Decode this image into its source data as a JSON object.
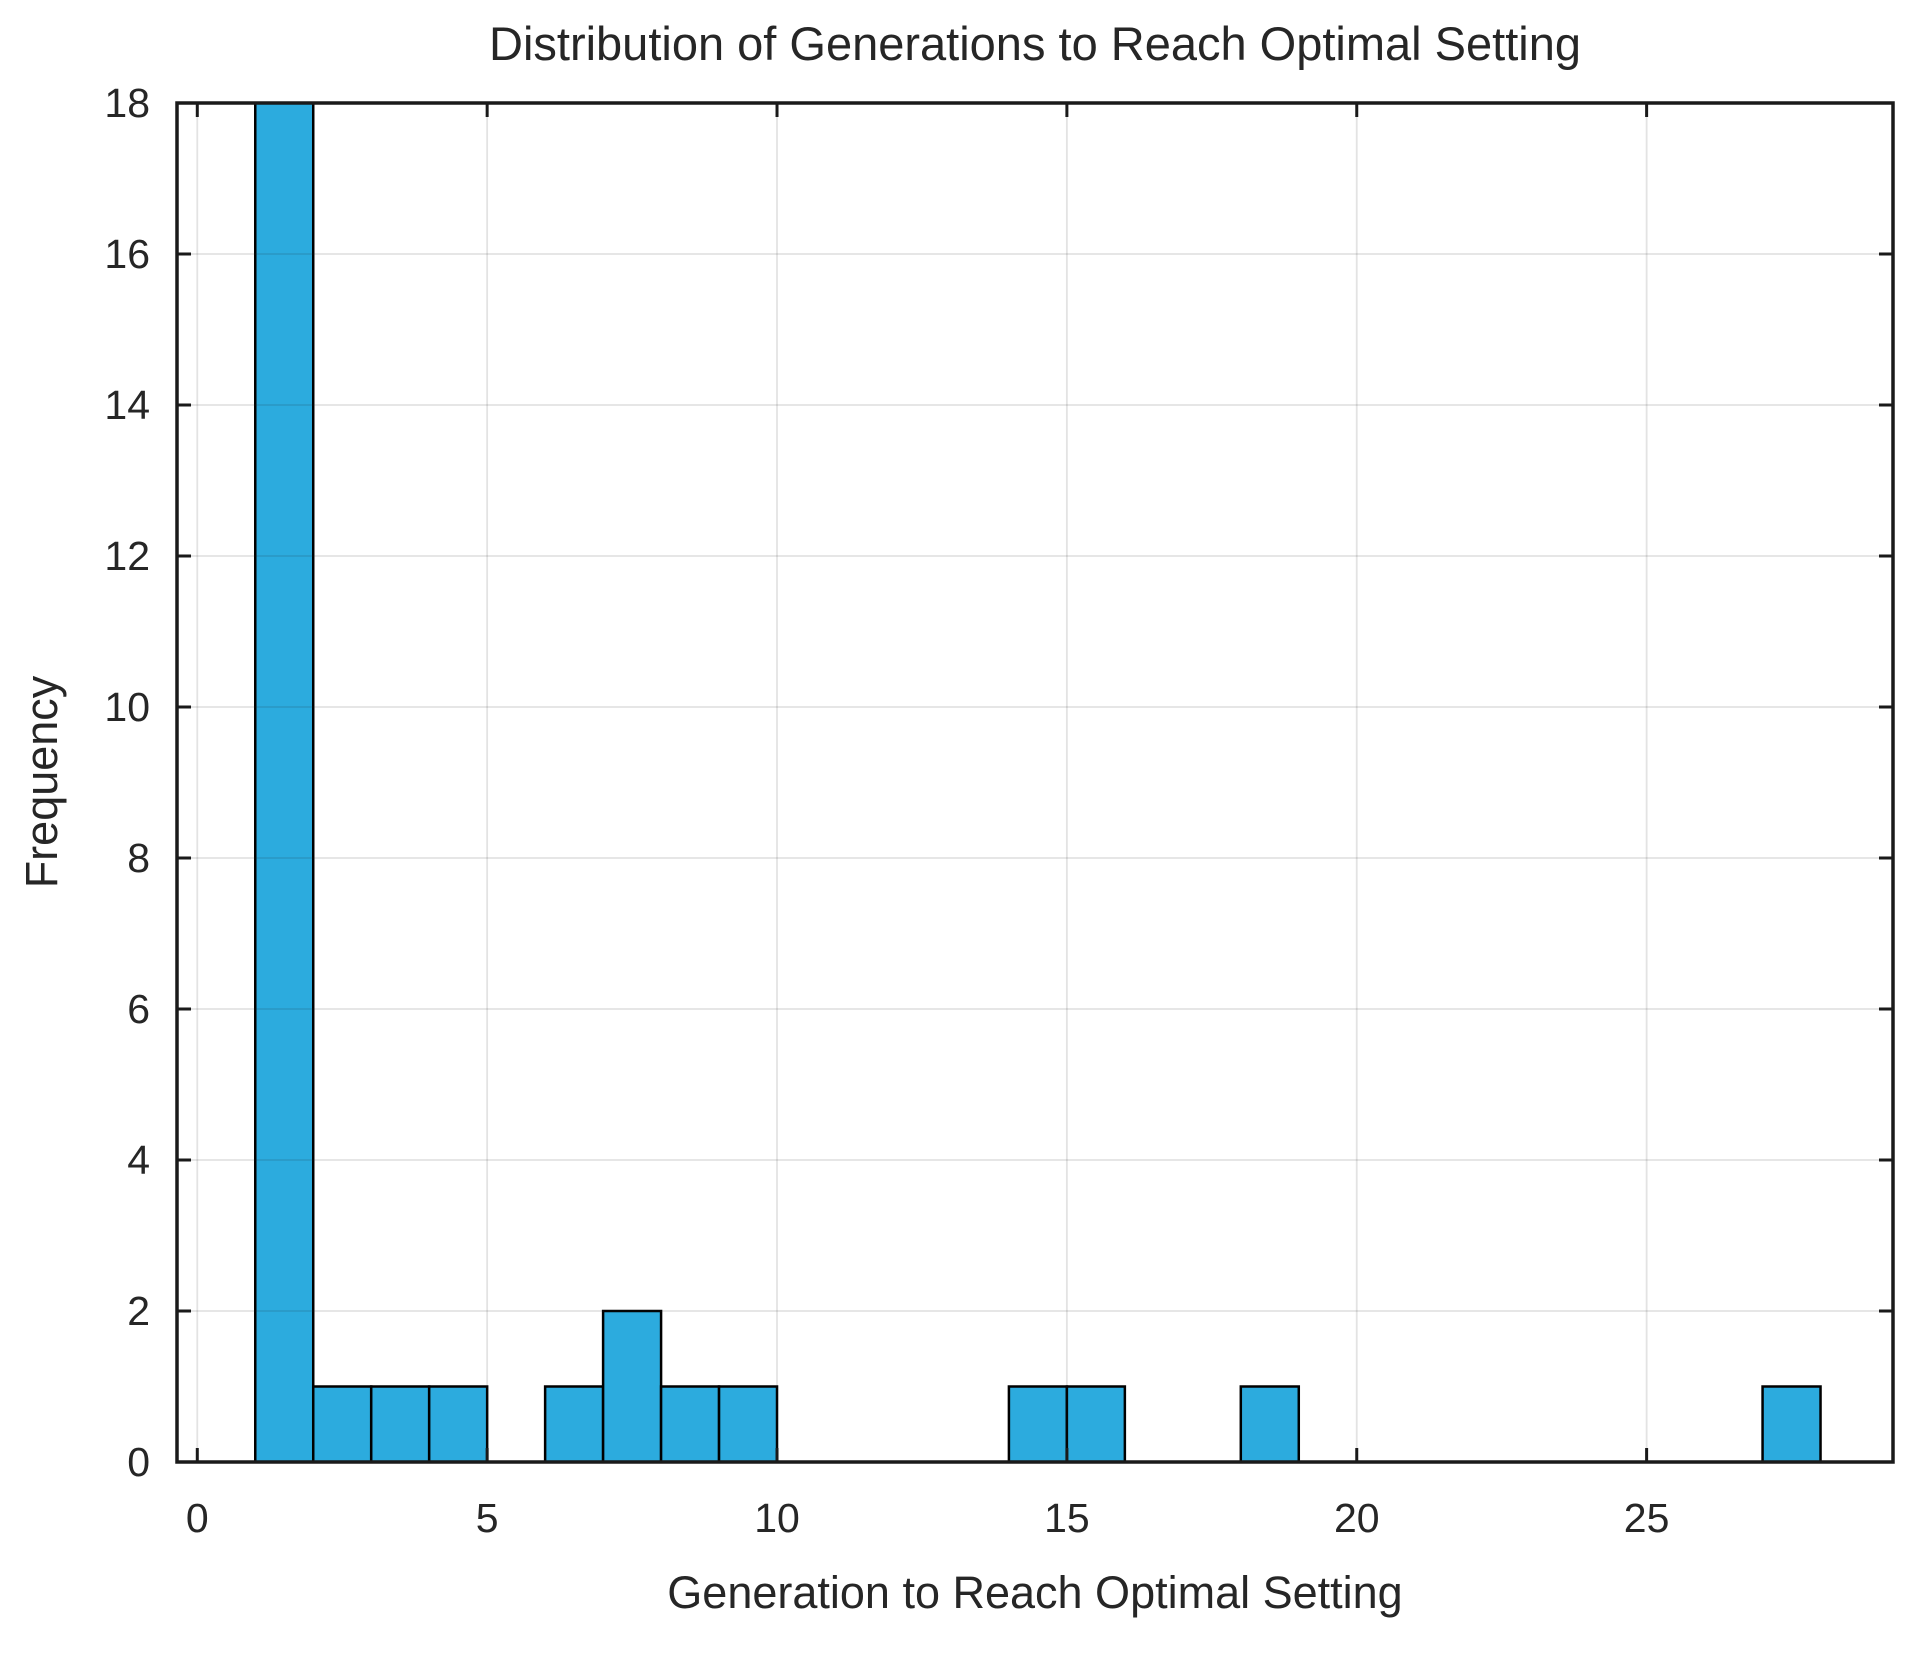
{
  "chart_data": {
    "type": "bar",
    "subtype": "histogram",
    "title": "Distribution of Generations to Reach Optimal Setting",
    "xlabel": "Generation to Reach Optimal Setting",
    "ylabel": "Frequency",
    "bins": [
      {
        "x0": 1,
        "x1": 2,
        "count": 18
      },
      {
        "x0": 2,
        "x1": 3,
        "count": 1
      },
      {
        "x0": 3,
        "x1": 4,
        "count": 1
      },
      {
        "x0": 4,
        "x1": 5,
        "count": 1
      },
      {
        "x0": 6,
        "x1": 7,
        "count": 1
      },
      {
        "x0": 7,
        "x1": 8,
        "count": 2
      },
      {
        "x0": 8,
        "x1": 9,
        "count": 1
      },
      {
        "x0": 9,
        "x1": 10,
        "count": 1
      },
      {
        "x0": 14,
        "x1": 15,
        "count": 1
      },
      {
        "x0": 15,
        "x1": 16,
        "count": 1
      },
      {
        "x0": 18,
        "x1": 19,
        "count": 1
      },
      {
        "x0": 27,
        "x1": 28,
        "count": 1
      }
    ],
    "xlim": [
      -0.35,
      29.25
    ],
    "ylim": [
      0,
      18
    ],
    "xticks": [
      0,
      5,
      10,
      15,
      20,
      25
    ],
    "yticks": [
      0,
      2,
      4,
      6,
      8,
      10,
      12,
      14,
      16,
      18
    ],
    "grid": true,
    "legend": null,
    "colors": {
      "bar_fill": "#2cabde",
      "bar_edge": "#000000",
      "axis": "#1a1a1a",
      "grid": "rgba(38,38,38,0.13)",
      "text": "#262626"
    }
  }
}
